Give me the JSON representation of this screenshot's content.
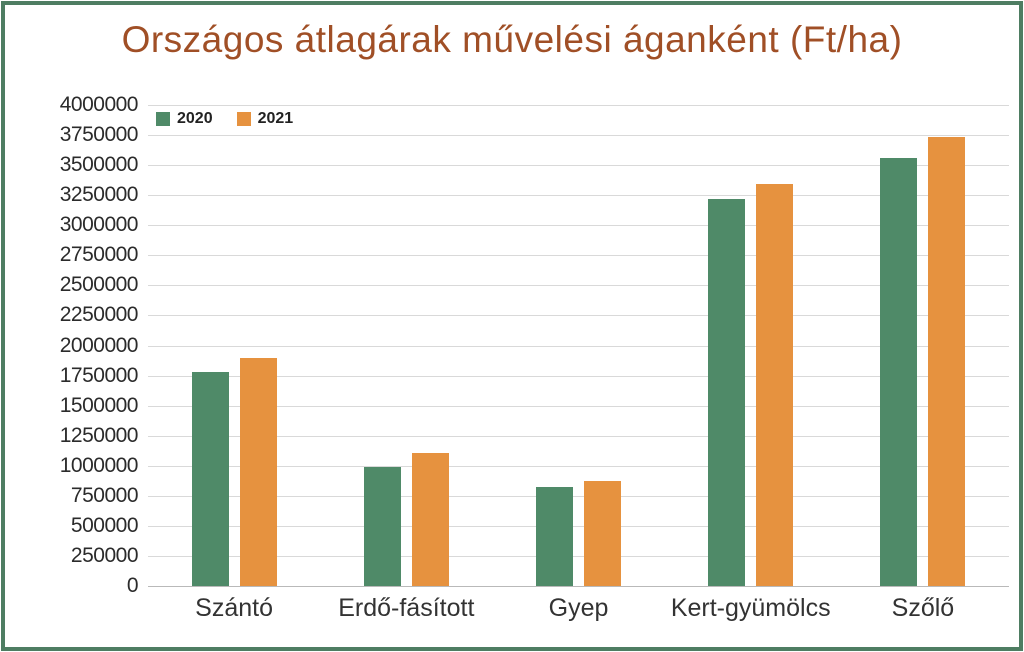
{
  "title": "Országos átlagárak művelési áganként (Ft/ha)",
  "legend": {
    "items": [
      {
        "label": "2020",
        "color": "#4f8a68"
      },
      {
        "label": "2021",
        "color": "#e6923f"
      }
    ]
  },
  "colors": {
    "frame_border": "#4e7d62",
    "title_text": "#a04f26",
    "gridline": "#d9d9d9",
    "axis_line": "#b9b9b9",
    "tick_text": "#2b2b2b",
    "category_text": "#333333",
    "background": "#ffffff"
  },
  "chart_data": {
    "type": "bar",
    "title": "Országos átlagárak művelési áganként (Ft/ha)",
    "unit": "Ft/ha",
    "categories": [
      "Szántó",
      "Erdő-fásított",
      "Gyep",
      "Kert-gyümölcs",
      "Szőlő"
    ],
    "series": [
      {
        "name": "2020",
        "color": "#4f8a68",
        "values": [
          1780000,
          990000,
          820000,
          3220000,
          3560000
        ]
      },
      {
        "name": "2021",
        "color": "#e6923f",
        "values": [
          1900000,
          1110000,
          870000,
          3340000,
          3730000
        ]
      }
    ],
    "xlabel": "",
    "ylabel": "",
    "ylim": [
      0,
      4000000
    ],
    "ytick_step": 250000,
    "yticks": [
      "4000000",
      "3750000",
      "3500000",
      "3250000",
      "3000000",
      "2750000",
      "2500000",
      "2250000",
      "2000000",
      "1750000",
      "1500000",
      "1250000",
      "1000000",
      "750000",
      "500000",
      "250000",
      "0"
    ],
    "grid": "horizontal",
    "legend_position": "top-left"
  }
}
